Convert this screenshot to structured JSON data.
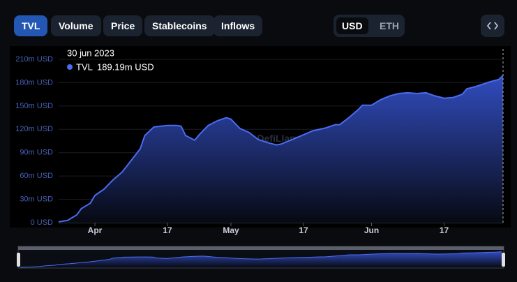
{
  "tabs": [
    "TVL",
    "Volume",
    "Price",
    "Stablecoins",
    "Inflows"
  ],
  "currencies": [
    "USD",
    "ETH"
  ],
  "watermark": "DefiLlama",
  "chart_data": {
    "type": "area",
    "x": [
      "2023-03-24",
      "2023-03-26",
      "2023-03-28",
      "2023-03-29",
      "2023-03-31",
      "2023-04-01",
      "2023-04-03",
      "2023-04-05",
      "2023-04-07",
      "2023-04-09",
      "2023-04-11",
      "2023-04-12",
      "2023-04-14",
      "2023-04-17",
      "2023-04-19",
      "2023-04-20",
      "2023-04-21",
      "2023-04-23",
      "2023-04-24",
      "2023-04-26",
      "2023-04-28",
      "2023-04-30",
      "2023-05-01",
      "2023-05-03",
      "2023-05-05",
      "2023-05-07",
      "2023-05-09",
      "2023-05-11",
      "2023-05-12",
      "2023-05-15",
      "2023-05-17",
      "2023-05-19",
      "2023-05-22",
      "2023-05-24",
      "2023-05-25",
      "2023-05-27",
      "2023-05-29",
      "2023-05-30",
      "2023-06-01",
      "2023-06-03",
      "2023-06-05",
      "2023-06-07",
      "2023-06-09",
      "2023-06-11",
      "2023-06-13",
      "2023-06-15",
      "2023-06-17",
      "2023-06-19",
      "2023-06-21",
      "2023-06-22",
      "2023-06-24",
      "2023-06-27",
      "2023-06-29",
      "2023-06-30"
    ],
    "series": [
      {
        "name": "TVL",
        "color": "#4a6cf0",
        "values": [
          1000000,
          3000000,
          10000000,
          18000000,
          25000000,
          35000000,
          43000000,
          55000000,
          65000000,
          80000000,
          95000000,
          112000000,
          123000000,
          125000000,
          125000000,
          124000000,
          112000000,
          106000000,
          113000000,
          125000000,
          131000000,
          135000000,
          133000000,
          121000000,
          116000000,
          107000000,
          103000000,
          100000000,
          101000000,
          108000000,
          113000000,
          118000000,
          122000000,
          126000000,
          126000000,
          135000000,
          145000000,
          151000000,
          151000000,
          158000000,
          163000000,
          166000000,
          167000000,
          166000000,
          167000000,
          163000000,
          160000000,
          161000000,
          165000000,
          172000000,
          175000000,
          181000000,
          184000000,
          189190000
        ]
      }
    ],
    "xlim": [
      "2023-03-24",
      "2023-06-30"
    ],
    "xticks": [
      {
        "value": "2023-04-01",
        "label": "Apr"
      },
      {
        "value": "2023-04-17",
        "label": "17"
      },
      {
        "value": "2023-05-01",
        "label": "May"
      },
      {
        "value": "2023-05-17",
        "label": "17"
      },
      {
        "value": "2023-06-01",
        "label": "Jun"
      },
      {
        "value": "2023-06-17",
        "label": "17"
      }
    ],
    "ylim": [
      0,
      210000000
    ],
    "yticks": [
      {
        "value": 0,
        "label": "0 USD"
      },
      {
        "value": 30000000,
        "label": "30m USD"
      },
      {
        "value": 60000000,
        "label": "60m USD"
      },
      {
        "value": 90000000,
        "label": "90m USD"
      },
      {
        "value": 120000000,
        "label": "120m USD"
      },
      {
        "value": 150000000,
        "label": "150m USD"
      },
      {
        "value": 180000000,
        "label": "180m USD"
      },
      {
        "value": 210000000,
        "label": "210m USD"
      }
    ],
    "grid": true,
    "tooltip": {
      "date": "30 jun 2023",
      "value_label": "189.19m USD"
    }
  }
}
